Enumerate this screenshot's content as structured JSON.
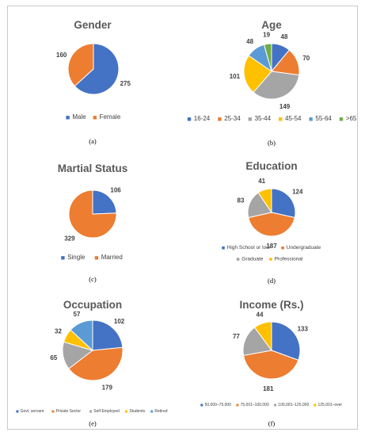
{
  "colors": {
    "blue": "#4472c4",
    "orange": "#ed7d31",
    "gray": "#a5a5a5",
    "yellow": "#ffc000",
    "lightblue": "#5b9bd5",
    "green": "#70ad47"
  },
  "chart_data": [
    {
      "type": "pie",
      "title": "Gender",
      "caption": "(a)",
      "categories": [
        "Male",
        "Female"
      ],
      "values": [
        275,
        160
      ],
      "colors": [
        "blue",
        "orange"
      ],
      "legend": "bottom"
    },
    {
      "type": "pie",
      "title": "Age",
      "caption": "(b)",
      "categories": [
        "16-24",
        "25-34",
        "35-44",
        "45-54",
        "55-64",
        ">65"
      ],
      "values": [
        48,
        70,
        149,
        101,
        48,
        19
      ],
      "colors": [
        "blue",
        "orange",
        "gray",
        "yellow",
        "lightblue",
        "green"
      ],
      "legend": "bottom"
    },
    {
      "type": "pie",
      "title": "Martial Status",
      "caption": "(c)",
      "categories": [
        "Single",
        "Married"
      ],
      "values": [
        106,
        329
      ],
      "colors": [
        "blue",
        "orange"
      ],
      "legend": "bottom"
    },
    {
      "type": "pie",
      "title": "Education",
      "caption": "(d)",
      "categories": [
        "High School or low",
        "Undergraduate",
        "Graduate",
        "Professional"
      ],
      "values": [
        124,
        187,
        83,
        41
      ],
      "colors": [
        "blue",
        "orange",
        "gray",
        "yellow"
      ],
      "legend": "bottom"
    },
    {
      "type": "pie",
      "title": "Occupation",
      "caption": "(e)",
      "categories": [
        "Govt. servant",
        "Private Sector",
        "Self-Employed",
        "Students",
        "Retired"
      ],
      "values": [
        102,
        179,
        65,
        32,
        57
      ],
      "colors": [
        "blue",
        "orange",
        "gray",
        "yellow",
        "lightblue"
      ],
      "legend": "bottom"
    },
    {
      "type": "pie",
      "title": "Income (Rs.)",
      "caption": "(f)",
      "categories": [
        "50,000–75,000",
        "75,001–100,000",
        "100,001–125,000",
        "125,001–over"
      ],
      "values": [
        133,
        181,
        77,
        44
      ],
      "colors": [
        "blue",
        "orange",
        "gray",
        "yellow"
      ],
      "legend": "bottom"
    }
  ]
}
